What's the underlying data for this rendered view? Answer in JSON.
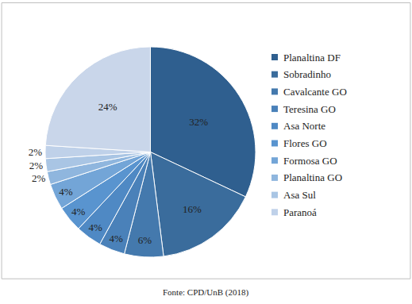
{
  "chart_data": {
    "type": "pie",
    "categories": [
      "Planaltina DF",
      "Sobradinho",
      "Cavalcante GO",
      "Teresina GO",
      "Asa Norte",
      "Flores GO",
      "Formosa GO",
      "Planaltina GO",
      "Asa Sul",
      "Paranoá",
      null
    ],
    "values": [
      32,
      16,
      6,
      4,
      4,
      4,
      4,
      2,
      2,
      2,
      24
    ],
    "value_labels": [
      "32%",
      "16%",
      "6%",
      "4%",
      "4%",
      "4%",
      "4%",
      "2%",
      "2%",
      "2%",
      "24%"
    ],
    "colors": [
      "#2f5f8f",
      "#3a6c9c",
      "#4479ad",
      "#4a81b9",
      "#4f89c4",
      "#5994cf",
      "#73a5d7",
      "#8fb6de",
      "#a9c5e4",
      "#bfd1e9",
      "#c9d6ea"
    ],
    "data_labels": true,
    "legend": "right",
    "annotations": [
      {
        "text": "Fonte: CPD/UnB (2018)"
      }
    ]
  }
}
